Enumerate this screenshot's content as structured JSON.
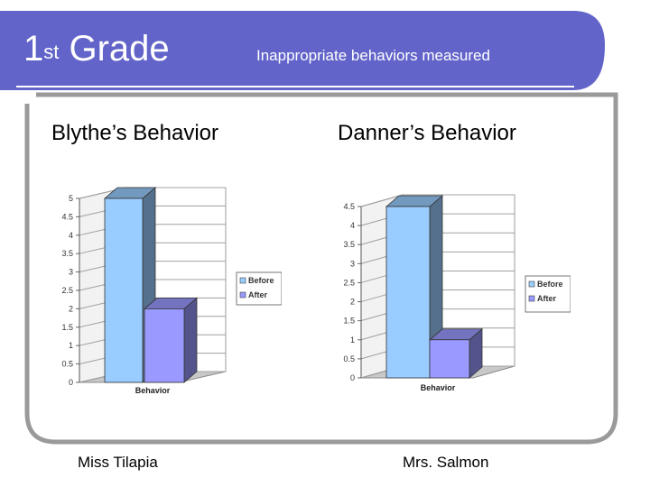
{
  "slide": {
    "title_main": "Grade",
    "title_number": "1",
    "title_sup": "st",
    "subtitle": "Inappropriate behaviors measured",
    "teacher_left": "Miss Tilapia",
    "teacher_right": "Mrs. Salmon",
    "colors": {
      "header": "#6264c9",
      "border": "#9a9a9a",
      "before": "#99ccff",
      "after": "#9999ff"
    }
  },
  "chart_data": [
    {
      "type": "bar",
      "title": "Blythe’s Behavior",
      "categories": [
        "Behavior"
      ],
      "series": [
        {
          "name": "Before",
          "values": [
            5
          ]
        },
        {
          "name": "After",
          "values": [
            2
          ]
        }
      ],
      "ylim": [
        0,
        5
      ],
      "yticks": [
        "0",
        "0.5",
        "1",
        "1.5",
        "2",
        "2.5",
        "3",
        "3.5",
        "4",
        "4.5",
        "5"
      ],
      "grid": true,
      "legend": "right"
    },
    {
      "type": "bar",
      "title": "Danner’s Behavior",
      "categories": [
        "Behavior"
      ],
      "series": [
        {
          "name": "Before",
          "values": [
            4.5
          ]
        },
        {
          "name": "After",
          "values": [
            1
          ]
        }
      ],
      "ylim": [
        0,
        4.5
      ],
      "yticks": [
        "0",
        "0.5",
        "1",
        "1.5",
        "2",
        "2.5",
        "3",
        "3.5",
        "4",
        "4.5"
      ],
      "grid": true,
      "legend": "right"
    }
  ]
}
